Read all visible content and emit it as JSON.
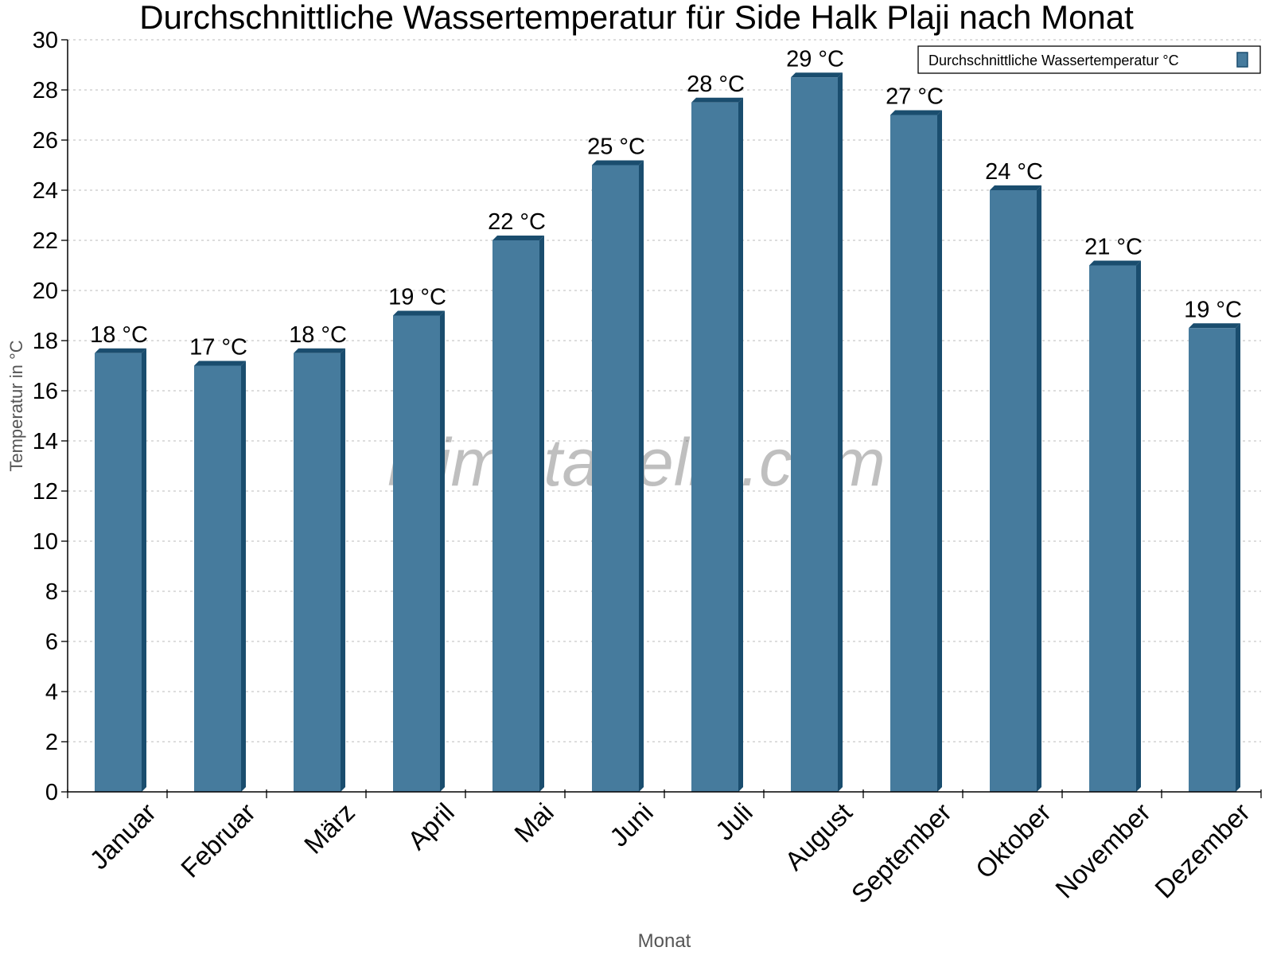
{
  "chart_data": {
    "type": "bar",
    "title": "Durchschnittliche Wassertemperatur für Side Halk Plaji nach Monat",
    "xlabel": "Monat",
    "ylabel": "Temperatur in °C",
    "ylim": [
      0,
      30
    ],
    "yticks": [
      "0",
      "2",
      "4",
      "6",
      "8",
      "10",
      "12",
      "14",
      "16",
      "18",
      "20",
      "22",
      "24",
      "26",
      "28",
      "30"
    ],
    "grid": true,
    "legend_position": "top-right",
    "categories": [
      "Januar",
      "Februar",
      "März",
      "April",
      "Mai",
      "Juni",
      "Juli",
      "August",
      "September",
      "Oktober",
      "November",
      "Dezember"
    ],
    "series": [
      {
        "name": "Durchschnittliche Wassertemperatur °C",
        "color": "#467b9d",
        "side_color": "#1a4d6e",
        "values": [
          17.5,
          17.0,
          17.5,
          19.0,
          22.0,
          25.0,
          27.5,
          28.5,
          27.0,
          24.0,
          21.0,
          18.5
        ],
        "labels": [
          "18 °C",
          "17 °C",
          "18 °C",
          "19 °C",
          "22 °C",
          "25 °C",
          "28 °C",
          "29 °C",
          "27 °C",
          "24 °C",
          "21 °C",
          "19 °C"
        ]
      }
    ],
    "watermark": "klimatabelle.com"
  }
}
